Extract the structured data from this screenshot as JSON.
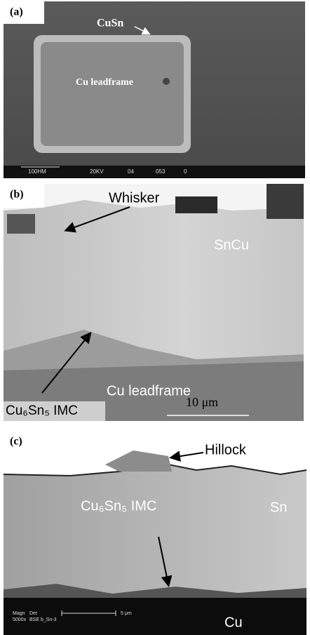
{
  "panels": [
    {
      "label": "(a)",
      "annotations": [
        "CuSn",
        "Cu leadframe"
      ],
      "info_bar": [
        "100HM",
        "20KV",
        "04",
        "053",
        "0"
      ]
    },
    {
      "label": "(b)",
      "annotations": [
        "Whisker",
        "SnCu",
        "Cu leadframe",
        "Cu₆Sn₅ IMC"
      ],
      "scale_bar": "10 μm"
    },
    {
      "label": "(c)",
      "annotations": [
        "Hillock",
        "Cu₆Sn₅ IMC",
        "Sn",
        "Cu"
      ],
      "info_bar": [
        "Magn",
        "5000x",
        "Det",
        "BSE b_Sn-3"
      ],
      "scale_bar": "5 μm"
    }
  ]
}
